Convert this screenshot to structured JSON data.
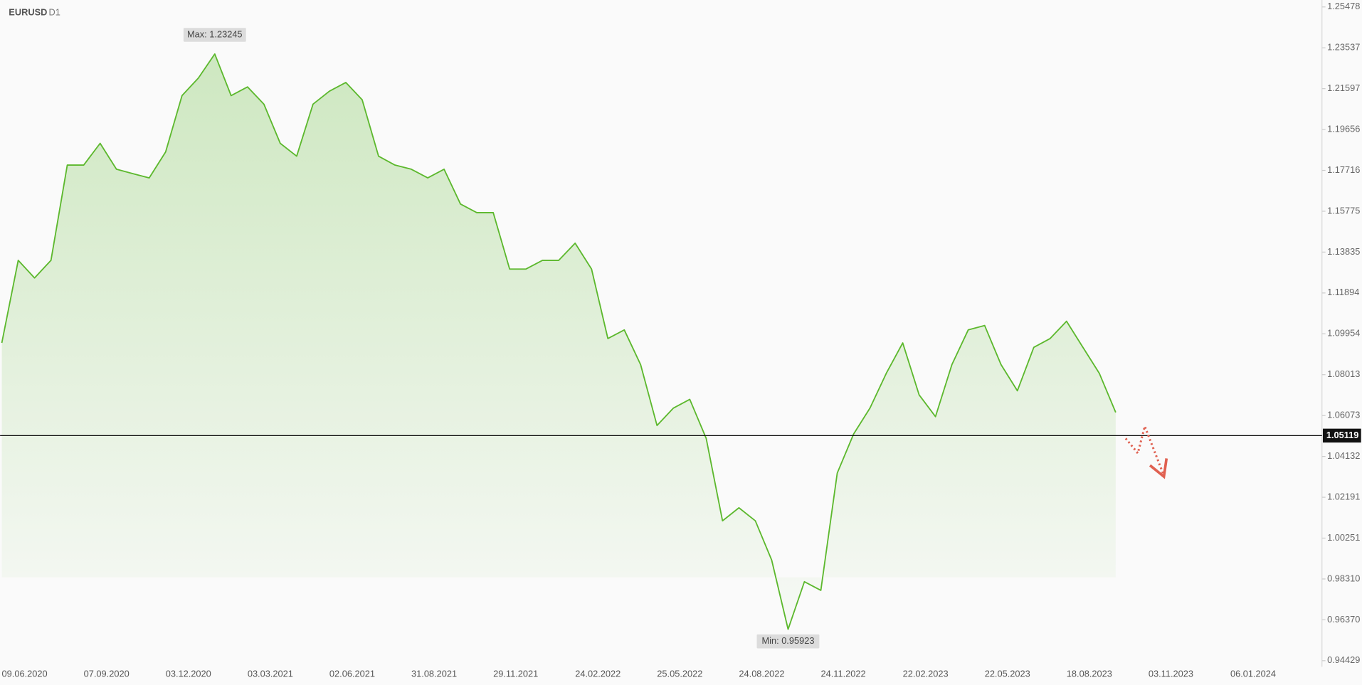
{
  "symbol": "EURUSD",
  "timeframe": "D1",
  "chart_data": {
    "type": "line",
    "series": [
      {
        "name": "EURUSD",
        "color": "#5cb82d",
        "values": [
          1.0952,
          1.1344,
          1.1261,
          1.1344,
          1.1797,
          1.1797,
          1.19,
          1.1777,
          1.1756,
          1.1736,
          1.1859,
          1.2127,
          1.221,
          1.23245,
          1.2127,
          1.2168,
          1.2086,
          1.19,
          1.1839,
          1.2086,
          1.2148,
          1.2189,
          1.2107,
          1.1839,
          1.1797,
          1.1777,
          1.1736,
          1.1777,
          1.1612,
          1.1571,
          1.1571,
          1.1303,
          1.1303,
          1.1344,
          1.1344,
          1.1426,
          1.1303,
          1.0973,
          1.1014,
          1.0849,
          1.056,
          1.0643,
          1.0684,
          1.0499,
          1.0107,
          1.0169,
          1.0107,
          0.9921,
          0.95923,
          0.9818,
          0.9777,
          1.0334,
          1.0519,
          1.0643,
          1.0808,
          1.0952,
          1.0705,
          1.0602,
          1.0849,
          1.1014,
          1.1035,
          1.0849,
          1.0725,
          1.0931,
          1.0973,
          1.1055,
          1.0931,
          1.0808,
          1.0622
        ]
      }
    ],
    "ylim": [
      0.94429,
      1.25478
    ],
    "yticks": [
      1.25478,
      1.23537,
      1.21597,
      1.19656,
      1.17716,
      1.15775,
      1.13835,
      1.11894,
      1.09954,
      1.08013,
      1.06073,
      1.04132,
      1.02191,
      1.00251,
      {
        "value": 0.9831,
        "label": "0.98310"
      },
      {
        "value": 0.9637,
        "label": "0.96370"
      },
      0.94429
    ],
    "xticks": [
      "09.06.2020",
      "07.09.2020",
      "03.12.2020",
      "03.03.2021",
      "02.06.2021",
      "31.08.2021",
      "29.11.2021",
      "24.02.2022",
      "25.05.2022",
      "24.08.2022",
      "24.11.2022",
      "22.02.2023",
      "22.05.2023",
      "18.08.2023",
      "03.11.2023",
      "06.01.2024"
    ],
    "current_price": {
      "value": 1.05119,
      "label": "1.05119"
    },
    "annotations": {
      "max": "Max: 1.23245",
      "min": "Min: 0.95923"
    }
  }
}
